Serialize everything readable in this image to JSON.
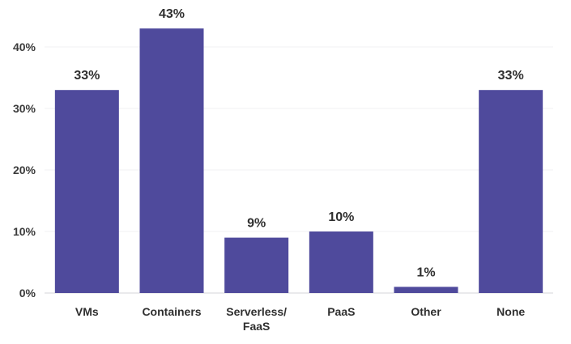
{
  "chart_data": {
    "type": "bar",
    "title": "",
    "xlabel": "",
    "ylabel": "",
    "ylim": [
      0,
      45
    ],
    "yticks": [
      0,
      10,
      20,
      30,
      40
    ],
    "ytick_labels": [
      "0%",
      "10%",
      "20%",
      "30%",
      "40%"
    ],
    "grid": true,
    "categories": [
      "VMs",
      "Containers",
      "Serverless/\nFaaS",
      "PaaS",
      "Other",
      "None"
    ],
    "values": [
      33,
      43,
      9,
      10,
      1,
      33
    ],
    "data_labels": [
      "33%",
      "43%",
      "9%",
      "10%",
      "1%",
      "33%"
    ],
    "colors": {
      "bar": "#4f4a9c",
      "grid": "#f0f0f3",
      "axis": "#d4d4d9"
    }
  }
}
